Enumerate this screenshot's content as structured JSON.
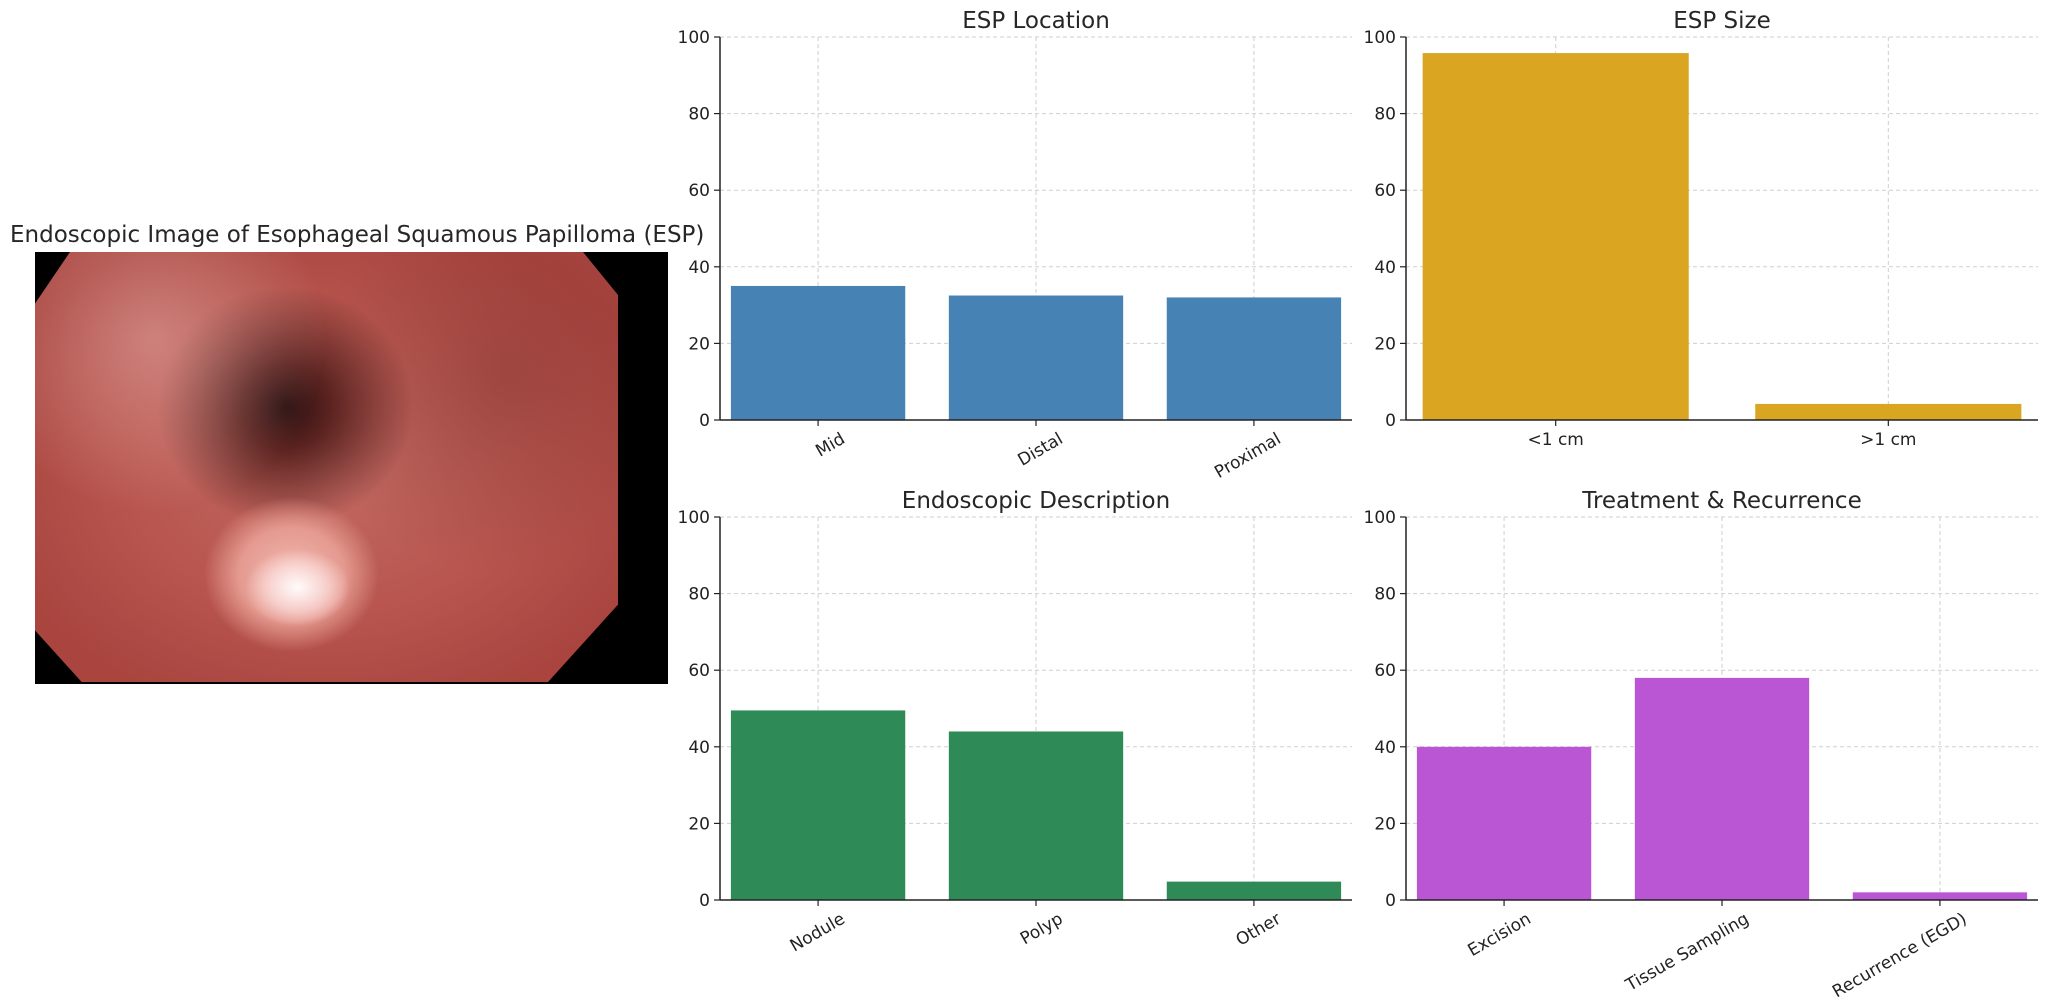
{
  "image_panel": {
    "title": "Endoscopic Image of Esophageal Squamous Papilloma (ESP)",
    "image_subject": "endoscopic-photo"
  },
  "chart_data": [
    {
      "type": "bar",
      "title": "ESP Location",
      "categories": [
        "Mid",
        "Distal",
        "Proximal"
      ],
      "values": [
        35,
        32.5,
        32
      ],
      "color": "#4682b4",
      "ylim": [
        0,
        100
      ],
      "yticks": [
        0,
        20,
        40,
        60,
        80,
        100
      ],
      "grid": true,
      "tick_rotation": 30
    },
    {
      "type": "bar",
      "title": "ESP Size",
      "categories": [
        "<1 cm",
        ">1 cm"
      ],
      "values": [
        95.8,
        4.2
      ],
      "color": "#daa520",
      "ylim": [
        0,
        100
      ],
      "yticks": [
        0,
        20,
        40,
        60,
        80,
        100
      ],
      "grid": true,
      "tick_rotation": 0
    },
    {
      "type": "bar",
      "title": "Endoscopic Description",
      "categories": [
        "Nodule",
        "Polyp",
        "Other"
      ],
      "values": [
        49.5,
        44,
        4.8
      ],
      "color": "#2e8b57",
      "ylim": [
        0,
        100
      ],
      "yticks": [
        0,
        20,
        40,
        60,
        80,
        100
      ],
      "grid": true,
      "tick_rotation": 30
    },
    {
      "type": "bar",
      "title": "Treatment & Recurrence",
      "categories": [
        "Excision",
        "Tissue Sampling",
        "Recurrence (EGD)"
      ],
      "values": [
        40,
        58,
        2
      ],
      "color": "#ba55d3",
      "ylim": [
        0,
        100
      ],
      "yticks": [
        0,
        20,
        40,
        60,
        80,
        100
      ],
      "grid": true,
      "tick_rotation": 30
    }
  ]
}
